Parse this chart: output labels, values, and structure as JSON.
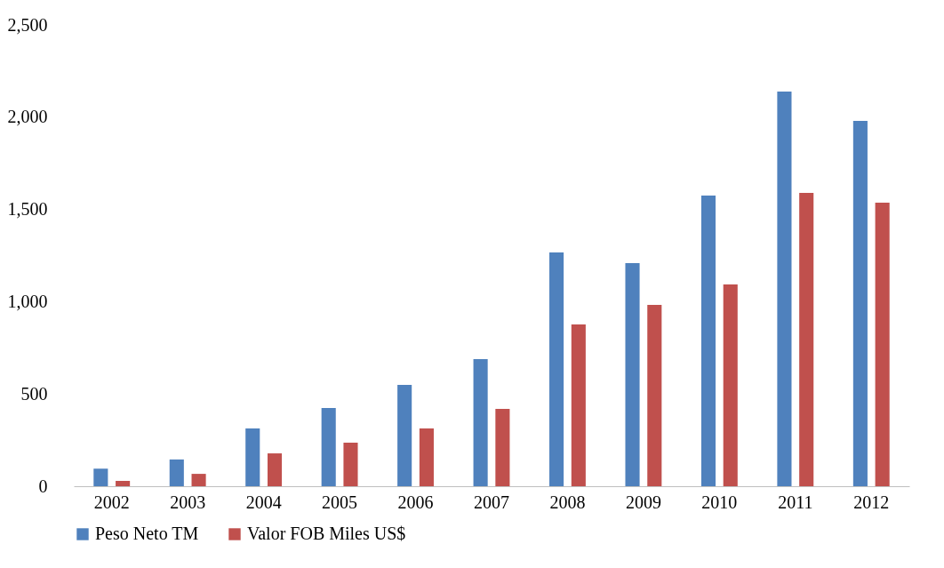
{
  "chart_data": {
    "type": "bar",
    "categories": [
      "2002",
      "2003",
      "2004",
      "2005",
      "2006",
      "2007",
      "2008",
      "2009",
      "2010",
      "2011",
      "2012"
    ],
    "series": [
      {
        "name": "Peso Neto TM",
        "color": "#4f81bd",
        "values": [
          95,
          145,
          313,
          424,
          549,
          689,
          1267,
          1209,
          1575,
          2139,
          1980
        ]
      },
      {
        "name": "Valor FOB Miles US$",
        "color": "#c0504d",
        "values": [
          29,
          67,
          178,
          236,
          313,
          419,
          877,
          983,
          1093,
          1590,
          1537
        ]
      }
    ],
    "ylim": [
      0,
      2500
    ],
    "yticks": [
      0,
      {
        "value": 500,
        "label": "500"
      },
      {
        "value": 1000,
        "label": "1,000"
      },
      {
        "value": 1500,
        "label": "1,500"
      },
      {
        "value": 2000,
        "label": "2,000"
      },
      {
        "value": 2500,
        "label": "2,500"
      }
    ],
    "grid": false,
    "legend": "bottom"
  }
}
